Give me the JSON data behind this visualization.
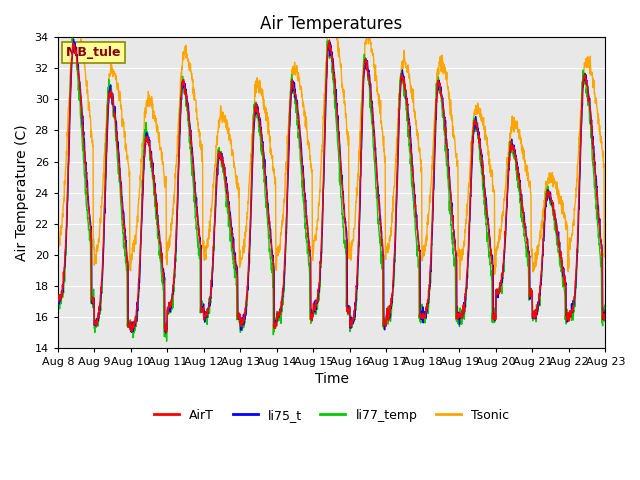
{
  "title": "Air Temperatures",
  "xlabel": "Time",
  "ylabel": "Air Temperature (C)",
  "ylim": [
    14,
    34
  ],
  "xlim": [
    0,
    15
  ],
  "xtick_labels": [
    "Aug 8",
    "Aug 9",
    "Aug 10",
    "Aug 11",
    "Aug 12",
    "Aug 13",
    "Aug 14",
    "Aug 15",
    "Aug 16",
    "Aug 17",
    "Aug 18",
    "Aug 19",
    "Aug 20",
    "Aug 21",
    "Aug 22",
    "Aug 23"
  ],
  "annotation_text": "MB_tule",
  "annotation_color": "#8B0000",
  "annotation_bg": "#FFFF99",
  "annotation_border": "#8B8B00",
  "colors": {
    "AirT": "#FF0000",
    "li75_t": "#0000FF",
    "li77_temp": "#00CC00",
    "Tsonic": "#FFA500"
  },
  "linewidth": 1.0,
  "bg_color": "#E8E8E8",
  "grid_color": "#FFFFFF",
  "title_fontsize": 12,
  "label_fontsize": 10,
  "tick_fontsize": 8
}
